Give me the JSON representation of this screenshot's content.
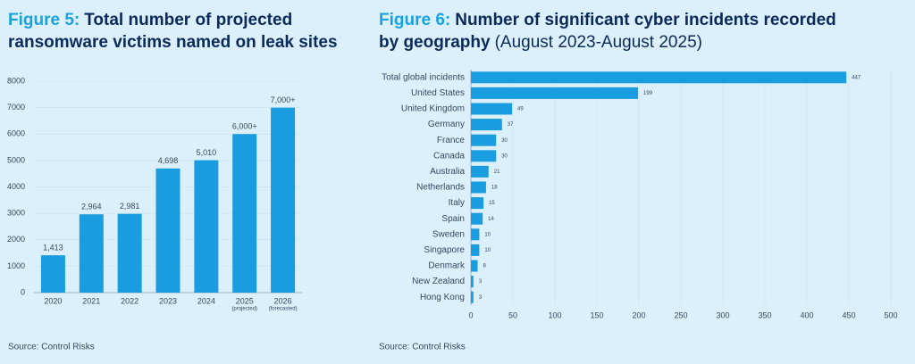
{
  "chart_data": [
    {
      "type": "bar",
      "figure_label": "Figure 5:",
      "title": [
        "Total number of projected",
        "ransomware victims named on leak sites"
      ],
      "categories": [
        "2020",
        "2021",
        "2022",
        "2023",
        "2024",
        "2025",
        "2026"
      ],
      "category_notes": [
        null,
        null,
        null,
        null,
        null,
        "(projected)",
        "(forecasted)"
      ],
      "values": [
        1413,
        2964,
        2981,
        4698,
        5010,
        6000,
        7000
      ],
      "value_labels": [
        "1,413",
        "2,964",
        "2,981",
        "4,698",
        "5,010",
        "6,000+",
        "7,000+"
      ],
      "color": "#1a9de0",
      "ylim": [
        0,
        8000
      ],
      "yticks": [
        0,
        1000,
        2000,
        3000,
        4000,
        5000,
        6000,
        7000,
        8000
      ],
      "grid": true,
      "source": "Source: Control Risks"
    },
    {
      "type": "hbar",
      "figure_label": "Figure 6:",
      "title": [
        "Number of significant cyber incidents recorded",
        "by geography"
      ],
      "subtitle": "(August 2023-August 2025)",
      "categories": [
        "Total global incidents",
        "United States",
        "United Kingdom",
        "Germany",
        "France",
        "Canada",
        "Australia",
        "Netherlands",
        "Italy",
        "Spain",
        "Sweden",
        "Singapore",
        "Denmark",
        "New Zealand",
        "Hong Kong"
      ],
      "values": [
        447,
        199,
        49,
        37,
        30,
        30,
        21,
        18,
        15,
        14,
        10,
        10,
        8,
        3,
        3
      ],
      "color": "#1a9de0",
      "xlim": [
        0,
        500
      ],
      "xticks": [
        0,
        50,
        100,
        150,
        200,
        250,
        300,
        350,
        400,
        450,
        500
      ],
      "grid": true,
      "source": "Source: Control Risks"
    }
  ]
}
